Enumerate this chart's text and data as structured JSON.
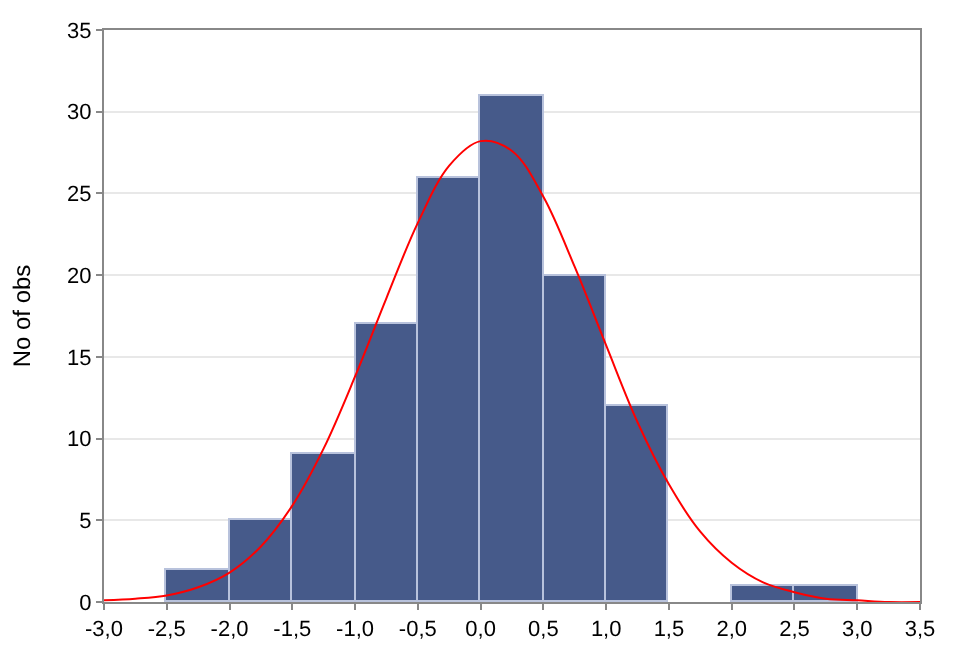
{
  "chart_data": {
    "type": "histogram",
    "ylabel": "No of obs",
    "bins": [
      -2.5,
      -2.0,
      -1.5,
      -1.0,
      -0.5,
      0.0,
      0.5,
      1.0,
      1.5,
      2.0,
      2.5,
      3.0
    ],
    "values": [
      2,
      5,
      9,
      17,
      26,
      31,
      20,
      12,
      0,
      1,
      1
    ],
    "color": "#465a8a",
    "series": [
      {
        "type": "line",
        "color": "#ff0000",
        "x": [
          -3.0,
          -2.75,
          -2.5,
          -2.25,
          -2.0,
          -1.75,
          -1.5,
          -1.25,
          -1.0,
          -0.75,
          -0.5,
          -0.25,
          0.0,
          0.25,
          0.5,
          0.75,
          1.0,
          1.25,
          1.5,
          1.75,
          2.0,
          2.25,
          2.5,
          2.75,
          3.0,
          3.25,
          3.5
        ],
        "values": [
          0.1,
          0.2,
          0.4,
          0.9,
          1.8,
          3.4,
          5.9,
          9.4,
          13.8,
          18.6,
          23.2,
          26.7,
          28.2,
          27.6,
          24.8,
          20.5,
          15.7,
          11.0,
          7.2,
          4.3,
          2.4,
          1.2,
          0.6,
          0.2,
          0.1,
          0.0,
          0.0
        ]
      }
    ],
    "xlim": [
      -3.0,
      3.5
    ],
    "xticks": [
      {
        "value": -3.0,
        "label": "-3,0"
      },
      {
        "value": -2.5,
        "label": "-2,5"
      },
      {
        "value": -2.0,
        "label": "-2,0"
      },
      {
        "value": -1.5,
        "label": "-1,5"
      },
      {
        "value": -1.0,
        "label": "-1,0"
      },
      {
        "value": -0.5,
        "label": "-0,5"
      },
      {
        "value": 0.0,
        "label": "0,0"
      },
      {
        "value": 0.5,
        "label": "0,5"
      },
      {
        "value": 1.0,
        "label": "1,0"
      },
      {
        "value": 1.5,
        "label": "1,5"
      },
      {
        "value": 2.0,
        "label": "2,0"
      },
      {
        "value": 2.5,
        "label": "2,5"
      },
      {
        "value": 3.0,
        "label": "3,0"
      },
      {
        "value": 3.5,
        "label": "3,5"
      }
    ],
    "ylim": [
      0,
      35
    ],
    "yticks": [
      0,
      5,
      10,
      15,
      20,
      25,
      30,
      35
    ],
    "grid": "y"
  }
}
